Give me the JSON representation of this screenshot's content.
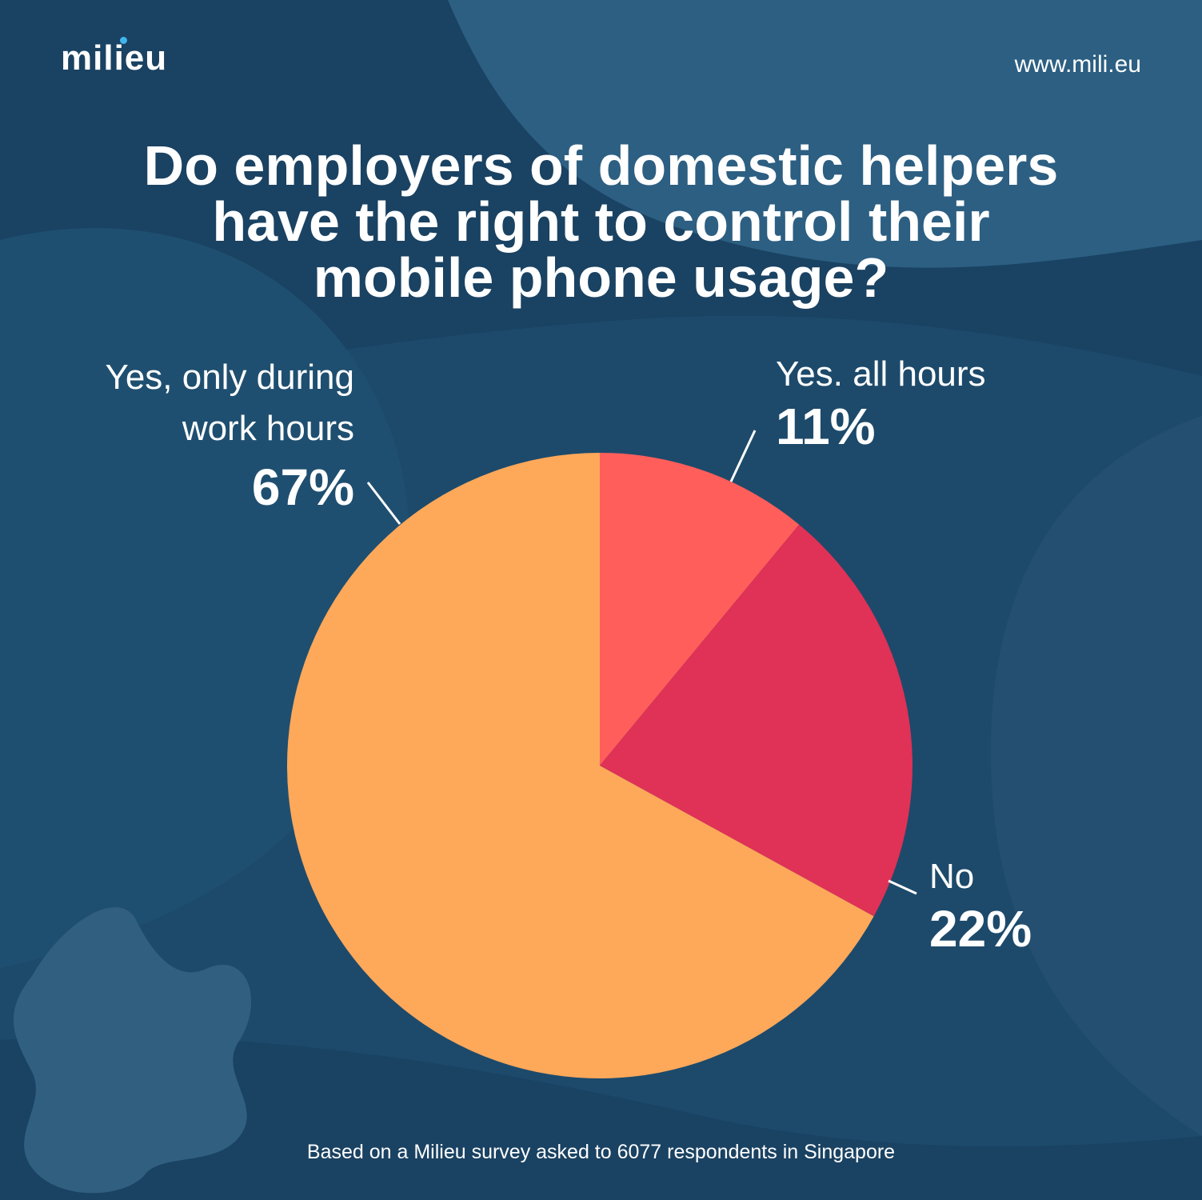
{
  "brand": {
    "logo_text": "milieu",
    "url": "www.mili.eu"
  },
  "title_lines": [
    "Do employers of domestic helpers",
    "have the right to control their",
    "mobile phone usage?"
  ],
  "footnote": "Based on a Milieu survey asked to 6077 respondents in Singapore",
  "colors": {
    "background": "#1d4a6b",
    "accent_dot": "#3fb5ee"
  },
  "chart_data": {
    "type": "pie",
    "start_angle_deg": 0,
    "direction": "clockwise",
    "slices": [
      {
        "label_lines": [
          "Yes. all hours"
        ],
        "value": 11,
        "value_label": "11%",
        "color": "#ff5e5b"
      },
      {
        "label_lines": [
          "No"
        ],
        "value": 22,
        "value_label": "22%",
        "color": "#e03156"
      },
      {
        "label_lines": [
          "Yes, only during",
          "work hours"
        ],
        "value": 67,
        "value_label": "67%",
        "color": "#fea85a"
      }
    ]
  }
}
